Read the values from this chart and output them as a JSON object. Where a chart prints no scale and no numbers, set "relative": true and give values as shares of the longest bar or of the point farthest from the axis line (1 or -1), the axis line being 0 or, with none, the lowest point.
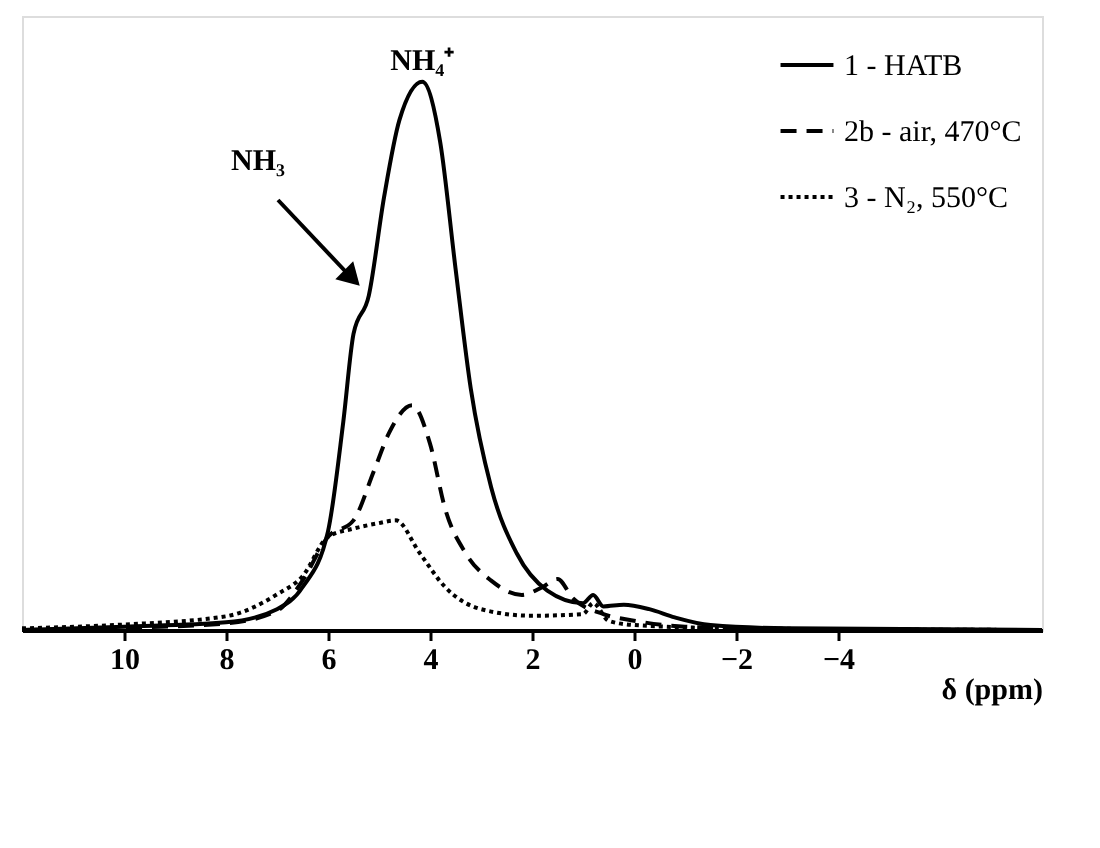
{
  "chart_data": {
    "type": "line",
    "relative": true,
    "xlabel": "δ (ppm)",
    "xlim": [
      12,
      -8
    ],
    "xticks": [
      10,
      8,
      6,
      4,
      2,
      0,
      -2,
      -4
    ],
    "legend": "top right",
    "grid": false,
    "annotations": [
      "NH₃",
      {
        "text": "NH₄⁺",
        "x": 4.15,
        "y": 1.0
      }
    ],
    "series": [
      {
        "name": "1 - HATB",
        "color": "#000000",
        "line_style": "solid",
        "x": [
          12,
          10,
          8,
          7,
          6.5,
          6.0,
          5.7,
          5.5,
          5.2,
          4.9,
          4.6,
          4.15,
          3.8,
          3.5,
          3.2,
          2.8,
          2.3,
          1.7,
          1.0,
          0.8,
          0.6,
          0.2,
          -0.3,
          -0.8,
          -1.5,
          -3,
          -8
        ],
        "values": [
          0,
          0.006,
          0.014,
          0.038,
          0.078,
          0.18,
          0.38,
          0.54,
          0.61,
          0.79,
          0.93,
          1.0,
          0.89,
          0.66,
          0.44,
          0.26,
          0.14,
          0.072,
          0.049,
          0.064,
          0.043,
          0.046,
          0.038,
          0.023,
          0.009,
          0.003,
          0
        ]
      },
      {
        "name": "2b - air, 470°C",
        "color": "#000000",
        "line_style": "dashed",
        "x": [
          12,
          10,
          8,
          7,
          6.5,
          6.0,
          5.5,
          5.1,
          4.8,
          4.35,
          4.0,
          3.7,
          3.3,
          2.8,
          2.2,
          1.8,
          1.5,
          1.2,
          0.6,
          0,
          -1,
          -3,
          -8
        ],
        "values": [
          0,
          0.004,
          0.012,
          0.035,
          0.09,
          0.17,
          0.2,
          0.29,
          0.36,
          0.41,
          0.34,
          0.22,
          0.14,
          0.09,
          0.064,
          0.078,
          0.093,
          0.058,
          0.029,
          0.017,
          0.006,
          0.002,
          0
        ]
      },
      {
        "name": "3 - N₂, 550°C",
        "color": "#000000",
        "line_style": "dotted",
        "x": [
          12,
          10,
          8,
          7,
          6.5,
          6.0,
          5.5,
          5.0,
          4.67,
          4.2,
          3.7,
          3.0,
          2.0,
          1.0,
          0.8,
          0.5,
          0,
          -2,
          -8
        ],
        "values": [
          0.003,
          0.01,
          0.025,
          0.065,
          0.098,
          0.17,
          0.185,
          0.195,
          0.2,
          0.14,
          0.078,
          0.038,
          0.026,
          0.029,
          0.049,
          0.017,
          0.009,
          0.003,
          0
        ]
      }
    ]
  }
}
